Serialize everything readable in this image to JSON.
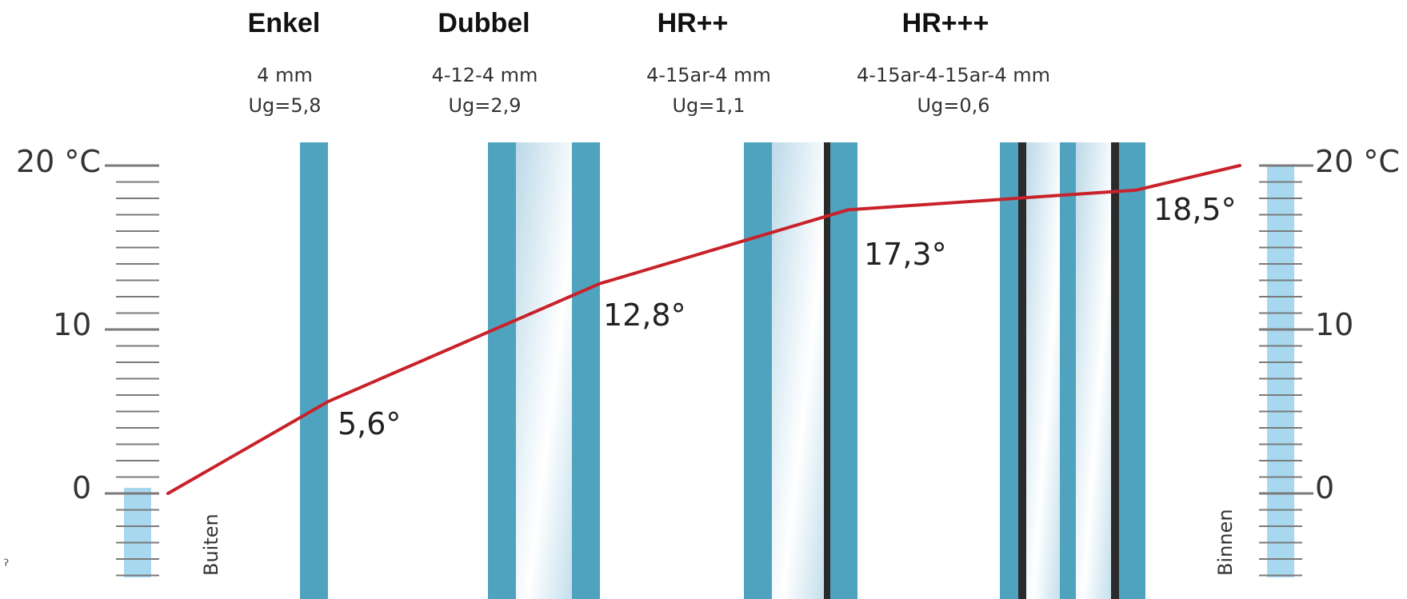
{
  "glazing": [
    {
      "title": "Enkel",
      "spec": "4 mm",
      "ug": "Ug=5,8",
      "surface_temp": "5,6°",
      "surface_value": 5.6
    },
    {
      "title": "Dubbel",
      "spec": "4-12-4 mm",
      "ug": "Ug=2,9",
      "surface_temp": "12,8°",
      "surface_value": 12.8
    },
    {
      "title": "HR++",
      "spec": "4-15ar-4 mm",
      "ug": "Ug=1,1",
      "surface_temp": "17,3°",
      "surface_value": 17.3
    },
    {
      "title": "HR+++",
      "spec": "4-15ar-4-15ar-4 mm",
      "ug": "Ug=0,6",
      "surface_temp": "18,5°",
      "surface_value": 18.5
    }
  ],
  "left_axis": {
    "top": "20 °C",
    "mid": "10",
    "bottom": "0"
  },
  "right_axis": {
    "top": "20 °C",
    "mid": "10",
    "bottom": "0"
  },
  "outside_label": "Buiten",
  "inside_label": "Binnen",
  "stray_mark": "ˀ",
  "colors": {
    "glass_pane": "#4fa3bf",
    "cavity": "#d6e9f2",
    "temperature_line": "#c8222a",
    "fluid": "#a8d8f0",
    "scale": "#7a7a7a"
  },
  "chart_data": {
    "type": "line",
    "x": [
      "Buiten",
      "Enkel",
      "Dubbel",
      "HR++",
      "HR+++",
      "Binnen"
    ],
    "y": [
      0,
      5.6,
      12.8,
      17.3,
      18.5,
      20
    ],
    "ylim": [
      -5,
      20
    ]
  }
}
